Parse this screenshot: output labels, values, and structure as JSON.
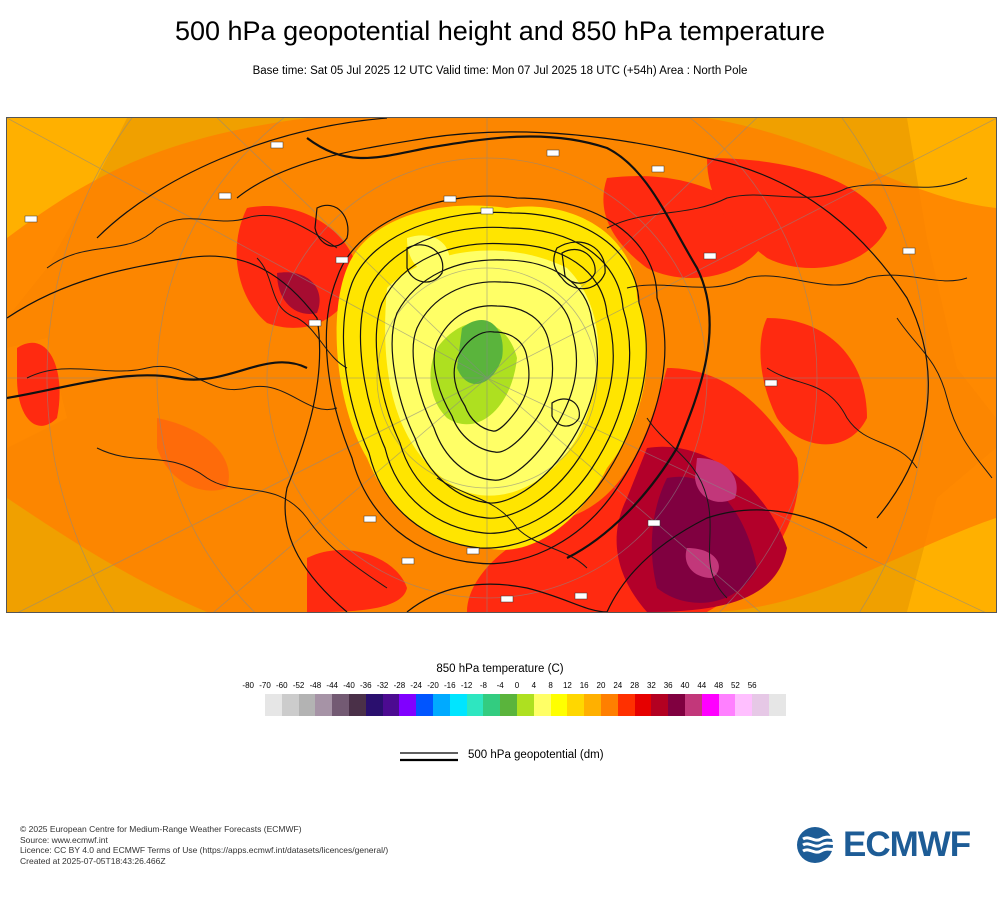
{
  "title": "500 hPa geopotential height and 850 hPa temperature",
  "subtitle": "Base time: Sat 05 Jul 2025 12 UTC Valid time: Mon 07 Jul 2025 18 UTC (+54h) Area : North Pole",
  "legend": {
    "title": "850 hPa temperature (C)",
    "ticks": [
      "-80",
      "-70",
      "-60",
      "-52",
      "-48",
      "-44",
      "-40",
      "-36",
      "-32",
      "-28",
      "-24",
      "-20",
      "-16",
      "-12",
      "-8",
      "-4",
      "0",
      "4",
      "8",
      "12",
      "16",
      "20",
      "24",
      "28",
      "32",
      "36",
      "40",
      "44",
      "48",
      "52",
      "56"
    ],
    "colors": [
      "#e6e6e6",
      "#cccccc",
      "#b3b3b3",
      "#a693a6",
      "#735a73",
      "#4a3048",
      "#2a0f6e",
      "#4c0b91",
      "#8000ff",
      "#0055ff",
      "#00aaff",
      "#00e5ff",
      "#2ee6c0",
      "#33cc80",
      "#5ab43c",
      "#aee020",
      "#ffff66",
      "#ffff00",
      "#ffd700",
      "#ffb000",
      "#ff7f00",
      "#ff3000",
      "#e60000",
      "#b30021",
      "#800040",
      "#c2377a",
      "#ff00ff",
      "#ff80ff",
      "#ffbfff",
      "#e6c8e6",
      "#e6e6e6"
    ],
    "line_label": "500 hPa geopotential (dm)"
  },
  "footer": {
    "line1": "© 2025 European Centre for Medium-Range Weather Forecasts (ECMWF)",
    "line2": "Source: www.ecmwf.int",
    "line3": "Licence: CC BY 4.0 and ECMWF Terms of Use (https://apps.ecmwf.int/datasets/licences/general/)",
    "line4": "Created at 2025-07-05T18:43:26.466Z"
  },
  "logo": {
    "text": "ECMWF",
    "color": "#1d5c96"
  },
  "map": {
    "projection": "North Pole",
    "colors": {
      "background": "#f0a000",
      "warm": "#ff6a00",
      "hot": "#ff2a10",
      "veryhot": "#b3002a",
      "extreme": "#800040",
      "magenta": "#c2377a",
      "yellow": "#ffe500",
      "paleyellow": "#ffff66",
      "green": "#5ab43c",
      "lightgreen": "#aee020"
    }
  }
}
